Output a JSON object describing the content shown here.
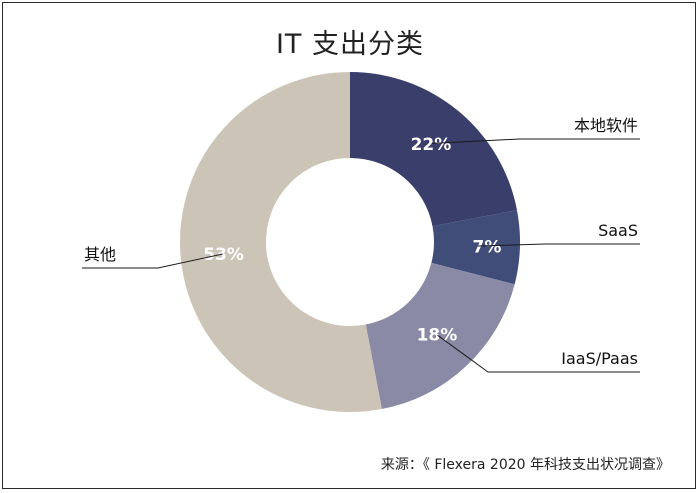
{
  "chart_data": {
    "type": "pie",
    "title": "IT 支出分类",
    "slices": [
      {
        "label": "本地软件",
        "value": 22,
        "value_label": "22%",
        "color": "#3a3e6b"
      },
      {
        "label": "SaaS",
        "value": 7,
        "value_label": "7%",
        "color": "#3f4d78"
      },
      {
        "label": "IaaS/Paas",
        "value": 18,
        "value_label": "18%",
        "color": "#8a89a6"
      },
      {
        "label": "其他",
        "value": 53,
        "value_label": "53%",
        "color": "#cdc4b8"
      }
    ],
    "donut": true,
    "start_angle": "12 o'clock",
    "direction": "clockwise"
  },
  "source": "来源：《 Flexera 2020 年科技支出状况调查》"
}
